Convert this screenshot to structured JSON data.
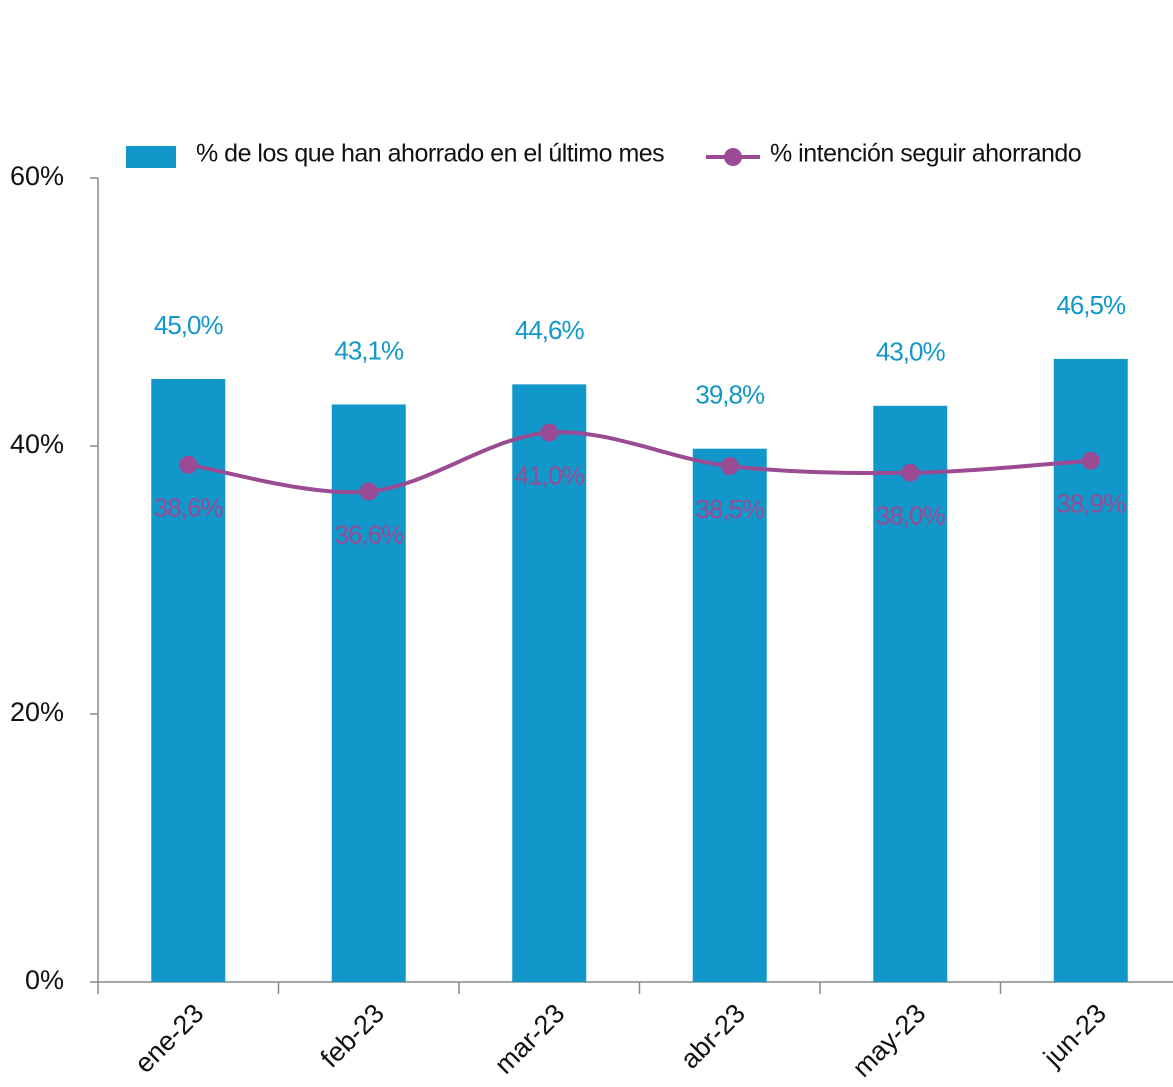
{
  "chart_data": {
    "type": "bar",
    "categories": [
      "ene-23",
      "feb-23",
      "mar-23",
      "abr-23",
      "may-23",
      "jun-23"
    ],
    "series": [
      {
        "name": "% de los que han ahorrado en el último mes",
        "type": "bar",
        "color": "#1197c9",
        "values": [
          45.0,
          43.1,
          44.6,
          39.8,
          43.0,
          46.5
        ],
        "value_labels": [
          "45,0%",
          "43,1%",
          "44,6%",
          "39,8%",
          "43,0%",
          "46,5%"
        ]
      },
      {
        "name": "% intención seguir ahorrando",
        "type": "line",
        "color": "#9b4a94",
        "values": [
          38.6,
          36.6,
          41.0,
          38.5,
          38.0,
          38.9
        ],
        "value_labels": [
          "38,6%",
          "36,6%",
          "41,0%",
          "38,5%",
          "38,0%",
          "38,9%"
        ]
      }
    ],
    "ylim": [
      0,
      60
    ],
    "yticks": [
      {
        "value": 0,
        "label": "0%"
      },
      {
        "value": 20,
        "label": "20%"
      },
      {
        "value": 40,
        "label": "40%"
      },
      {
        "value": 60,
        "label": "60%"
      }
    ],
    "grid": false,
    "legend": "top"
  }
}
